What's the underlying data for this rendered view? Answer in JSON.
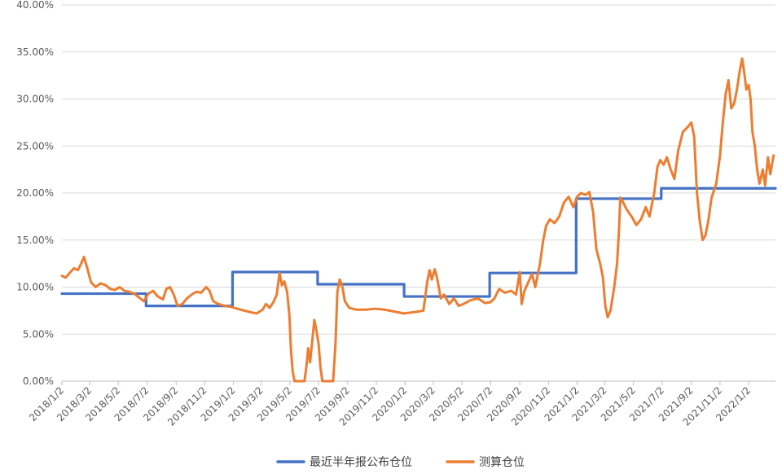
{
  "chart_data": {
    "type": "line",
    "title": "",
    "xlabel": "",
    "ylabel": "",
    "ylim": [
      0,
      40
    ],
    "y_tick_labels": [
      "0.00%",
      "5.00%",
      "10.00%",
      "15.00%",
      "20.00%",
      "25.00%",
      "30.00%",
      "35.00%",
      "40.00%"
    ],
    "x_range": [
      "2018-01-02",
      "2022-02-28"
    ],
    "x_tick_labels": [
      "2018/1/2",
      "2018/3/2",
      "2018/5/2",
      "2018/7/2",
      "2018/9/2",
      "2018/11/2",
      "2019/1/2",
      "2019/3/2",
      "2019/5/2",
      "2019/7/2",
      "2019/9/2",
      "2019/11/2",
      "2020/1/2",
      "2020/3/2",
      "2020/5/2",
      "2020/7/2",
      "2020/9/2",
      "2020/11/2",
      "2021/1/2",
      "2021/3/2",
      "2021/5/2",
      "2021/7/2",
      "2021/9/2",
      "2021/11/2",
      "2022/1/2"
    ],
    "grid": "horizontal",
    "legend_position": "bottom",
    "series": [
      {
        "name": "最近半年报公布仓位",
        "color": "#4472C4",
        "step": true,
        "points": [
          [
            "2018-01-02",
            9.3
          ],
          [
            "2018-06-30",
            9.3
          ],
          [
            "2018-06-30",
            8.0
          ],
          [
            "2018-12-31",
            8.0
          ],
          [
            "2018-12-31",
            11.6
          ],
          [
            "2019-06-30",
            11.6
          ],
          [
            "2019-06-30",
            10.3
          ],
          [
            "2019-12-31",
            10.3
          ],
          [
            "2019-12-31",
            9.0
          ],
          [
            "2020-06-30",
            9.0
          ],
          [
            "2020-06-30",
            11.5
          ],
          [
            "2020-12-31",
            11.5
          ],
          [
            "2020-12-31",
            19.4
          ],
          [
            "2021-06-30",
            19.4
          ],
          [
            "2021-06-30",
            20.5
          ],
          [
            "2022-02-28",
            20.5
          ]
        ]
      },
      {
        "name": "测算仓位",
        "color": "#ED7D31",
        "step": false,
        "points": [
          [
            "2018-01-02",
            11.2
          ],
          [
            "2018-01-10",
            11.0
          ],
          [
            "2018-01-20",
            11.6
          ],
          [
            "2018-01-28",
            12.0
          ],
          [
            "2018-02-05",
            11.8
          ],
          [
            "2018-02-12",
            12.5
          ],
          [
            "2018-02-18",
            13.2
          ],
          [
            "2018-02-25",
            12.0
          ],
          [
            "2018-03-05",
            10.5
          ],
          [
            "2018-03-15",
            10.0
          ],
          [
            "2018-03-25",
            10.4
          ],
          [
            "2018-04-05",
            10.2
          ],
          [
            "2018-04-15",
            9.8
          ],
          [
            "2018-04-25",
            9.7
          ],
          [
            "2018-05-05",
            10.0
          ],
          [
            "2018-05-15",
            9.6
          ],
          [
            "2018-05-25",
            9.5
          ],
          [
            "2018-06-05",
            9.3
          ],
          [
            "2018-06-15",
            8.9
          ],
          [
            "2018-06-25",
            8.5
          ],
          [
            "2018-07-05",
            9.3
          ],
          [
            "2018-07-15",
            9.6
          ],
          [
            "2018-07-25",
            9.0
          ],
          [
            "2018-08-05",
            8.7
          ],
          [
            "2018-08-12",
            9.8
          ],
          [
            "2018-08-20",
            10.0
          ],
          [
            "2018-08-28",
            9.2
          ],
          [
            "2018-09-05",
            8.0
          ],
          [
            "2018-09-15",
            8.2
          ],
          [
            "2018-09-25",
            8.8
          ],
          [
            "2018-10-05",
            9.2
          ],
          [
            "2018-10-15",
            9.5
          ],
          [
            "2018-10-25",
            9.4
          ],
          [
            "2018-11-05",
            10.0
          ],
          [
            "2018-11-12",
            9.6
          ],
          [
            "2018-11-20",
            8.5
          ],
          [
            "2018-12-01",
            8.2
          ],
          [
            "2018-12-15",
            8.0
          ],
          [
            "2018-12-28",
            7.9
          ],
          [
            "2019-01-10",
            7.7
          ],
          [
            "2019-01-25",
            7.5
          ],
          [
            "2019-02-10",
            7.3
          ],
          [
            "2019-02-20",
            7.2
          ],
          [
            "2019-03-05",
            7.6
          ],
          [
            "2019-03-12",
            8.2
          ],
          [
            "2019-03-20",
            7.8
          ],
          [
            "2019-03-28",
            8.4
          ],
          [
            "2019-04-04",
            9.2
          ],
          [
            "2019-04-10",
            11.5
          ],
          [
            "2019-04-15",
            10.2
          ],
          [
            "2019-04-20",
            10.6
          ],
          [
            "2019-04-26",
            9.5
          ],
          [
            "2019-05-01",
            7.0
          ],
          [
            "2019-05-04",
            3.5
          ],
          [
            "2019-05-08",
            1.0
          ],
          [
            "2019-05-12",
            0.0
          ],
          [
            "2019-05-25",
            0.0
          ],
          [
            "2019-06-02",
            0.0
          ],
          [
            "2019-06-06",
            1.5
          ],
          [
            "2019-06-10",
            3.5
          ],
          [
            "2019-06-14",
            2.0
          ],
          [
            "2019-06-18",
            4.0
          ],
          [
            "2019-06-23",
            6.5
          ],
          [
            "2019-06-27",
            5.5
          ],
          [
            "2019-07-02",
            4.0
          ],
          [
            "2019-07-06",
            1.5
          ],
          [
            "2019-07-10",
            0.0
          ],
          [
            "2019-07-30",
            0.0
          ],
          [
            "2019-08-02",
            0.0
          ],
          [
            "2019-08-07",
            4.0
          ],
          [
            "2019-08-11",
            9.5
          ],
          [
            "2019-08-16",
            10.8
          ],
          [
            "2019-08-21",
            10.2
          ],
          [
            "2019-08-27",
            8.5
          ],
          [
            "2019-09-05",
            7.8
          ],
          [
            "2019-09-20",
            7.6
          ],
          [
            "2019-10-10",
            7.6
          ],
          [
            "2019-10-30",
            7.7
          ],
          [
            "2019-11-20",
            7.6
          ],
          [
            "2019-12-10",
            7.4
          ],
          [
            "2019-12-31",
            7.2
          ],
          [
            "2020-01-15",
            7.3
          ],
          [
            "2020-01-30",
            7.4
          ],
          [
            "2020-02-10",
            7.5
          ],
          [
            "2020-02-18",
            10.5
          ],
          [
            "2020-02-23",
            11.8
          ],
          [
            "2020-02-28",
            10.8
          ],
          [
            "2020-03-05",
            11.9
          ],
          [
            "2020-03-10",
            11.0
          ],
          [
            "2020-03-18",
            8.8
          ],
          [
            "2020-03-25",
            9.2
          ],
          [
            "2020-04-05",
            8.2
          ],
          [
            "2020-04-15",
            8.8
          ],
          [
            "2020-04-25",
            8.0
          ],
          [
            "2020-05-05",
            8.2
          ],
          [
            "2020-05-20",
            8.6
          ],
          [
            "2020-06-05",
            8.8
          ],
          [
            "2020-06-20",
            8.3
          ],
          [
            "2020-07-02",
            8.4
          ],
          [
            "2020-07-10",
            8.8
          ],
          [
            "2020-07-20",
            9.8
          ],
          [
            "2020-08-01",
            9.4
          ],
          [
            "2020-08-15",
            9.6
          ],
          [
            "2020-08-25",
            9.2
          ],
          [
            "2020-09-02",
            11.6
          ],
          [
            "2020-09-06",
            8.2
          ],
          [
            "2020-09-12",
            9.6
          ],
          [
            "2020-09-20",
            10.5
          ],
          [
            "2020-09-28",
            11.4
          ],
          [
            "2020-10-05",
            10.0
          ],
          [
            "2020-10-15",
            12.5
          ],
          [
            "2020-10-22",
            15.0
          ],
          [
            "2020-10-28",
            16.5
          ],
          [
            "2020-11-05",
            17.2
          ],
          [
            "2020-11-15",
            16.8
          ],
          [
            "2020-11-25",
            17.5
          ],
          [
            "2020-12-05",
            19.0
          ],
          [
            "2020-12-15",
            19.6
          ],
          [
            "2020-12-25",
            18.5
          ],
          [
            "2021-01-02",
            19.6
          ],
          [
            "2021-01-10",
            20.0
          ],
          [
            "2021-01-20",
            19.8
          ],
          [
            "2021-01-28",
            20.1
          ],
          [
            "2021-02-05",
            18.0
          ],
          [
            "2021-02-12",
            14.0
          ],
          [
            "2021-02-20",
            12.5
          ],
          [
            "2021-02-26",
            11.0
          ],
          [
            "2021-03-03",
            8.0
          ],
          [
            "2021-03-08",
            6.8
          ],
          [
            "2021-03-14",
            7.5
          ],
          [
            "2021-03-22",
            10.0
          ],
          [
            "2021-03-28",
            12.5
          ],
          [
            "2021-04-01",
            16.0
          ],
          [
            "2021-04-04",
            19.5
          ],
          [
            "2021-04-10",
            19.0
          ],
          [
            "2021-04-18",
            18.2
          ],
          [
            "2021-04-28",
            17.5
          ],
          [
            "2021-05-08",
            16.6
          ],
          [
            "2021-05-18",
            17.2
          ],
          [
            "2021-05-28",
            18.5
          ],
          [
            "2021-06-05",
            17.5
          ],
          [
            "2021-06-15",
            20.0
          ],
          [
            "2021-06-22",
            22.8
          ],
          [
            "2021-06-28",
            23.5
          ],
          [
            "2021-07-05",
            23.0
          ],
          [
            "2021-07-12",
            23.8
          ],
          [
            "2021-07-20",
            22.5
          ],
          [
            "2021-07-28",
            21.5
          ],
          [
            "2021-08-05",
            24.5
          ],
          [
            "2021-08-15",
            26.5
          ],
          [
            "2021-08-25",
            27.0
          ],
          [
            "2021-09-02",
            27.5
          ],
          [
            "2021-09-08",
            26.0
          ],
          [
            "2021-09-14",
            20.0
          ],
          [
            "2021-09-20",
            17.0
          ],
          [
            "2021-09-26",
            15.0
          ],
          [
            "2021-10-02",
            15.5
          ],
          [
            "2021-10-08",
            17.0
          ],
          [
            "2021-10-15",
            19.5
          ],
          [
            "2021-10-25",
            21.0
          ],
          [
            "2021-11-02",
            24.0
          ],
          [
            "2021-11-08",
            27.5
          ],
          [
            "2021-11-14",
            30.5
          ],
          [
            "2021-11-20",
            32.0
          ],
          [
            "2021-11-26",
            29.0
          ],
          [
            "2021-12-02",
            29.5
          ],
          [
            "2021-12-08",
            31.0
          ],
          [
            "2021-12-14",
            33.0
          ],
          [
            "2021-12-19",
            34.3
          ],
          [
            "2021-12-23",
            33.0
          ],
          [
            "2021-12-28",
            31.0
          ],
          [
            "2022-01-02",
            31.5
          ],
          [
            "2022-01-06",
            30.0
          ],
          [
            "2022-01-10",
            26.5
          ],
          [
            "2022-01-15",
            25.0
          ],
          [
            "2022-01-20",
            22.5
          ],
          [
            "2022-01-25",
            21.0
          ],
          [
            "2022-02-01",
            22.5
          ],
          [
            "2022-02-06",
            20.8
          ],
          [
            "2022-02-12",
            23.8
          ],
          [
            "2022-02-17",
            22.0
          ],
          [
            "2022-02-24",
            24.0
          ]
        ]
      }
    ]
  }
}
